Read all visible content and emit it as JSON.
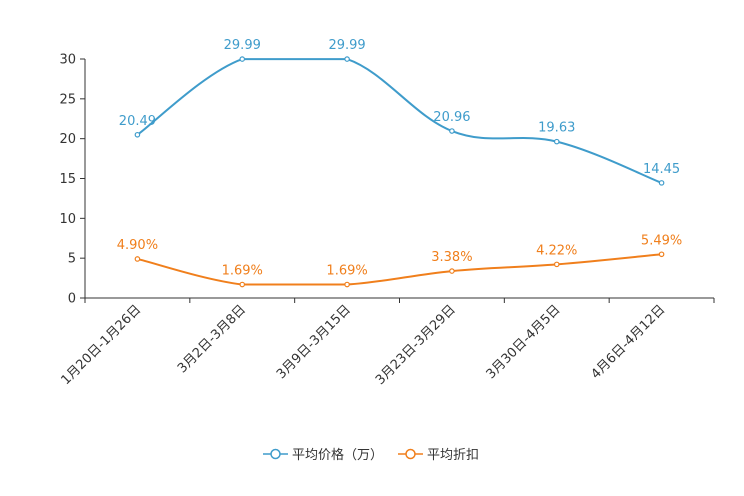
{
  "chart_data": {
    "type": "line",
    "categories": [
      "1月20日-1月26日",
      "3月2日-3月8日",
      "3月9日-3月15日",
      "3月23日-3月29日",
      "3月30日-4月5日",
      "4月6日-4月12日"
    ],
    "ylim": [
      0,
      30
    ],
    "yticks": [
      0,
      5,
      10,
      15,
      20,
      25,
      30
    ],
    "ytick_labels": [
      "0",
      "5",
      "10",
      "15",
      "20",
      "25",
      "30"
    ],
    "series": [
      {
        "name": "平均价格（万）",
        "color": "#3f9ccb",
        "values": [
          20.49,
          29.99,
          29.99,
          20.96,
          19.63,
          14.45
        ],
        "labels": [
          "20.49",
          "29.99",
          "29.99",
          "20.96",
          "19.63",
          "14.45"
        ]
      },
      {
        "name": "平均折扣",
        "color": "#f07f1c",
        "values": [
          4.9,
          1.69,
          1.69,
          3.38,
          4.22,
          5.49
        ],
        "labels": [
          "4.90%",
          "1.69%",
          "1.69%",
          "3.38%",
          "4.22%",
          "5.49%"
        ]
      }
    ],
    "legend_position": "bottom-center"
  }
}
